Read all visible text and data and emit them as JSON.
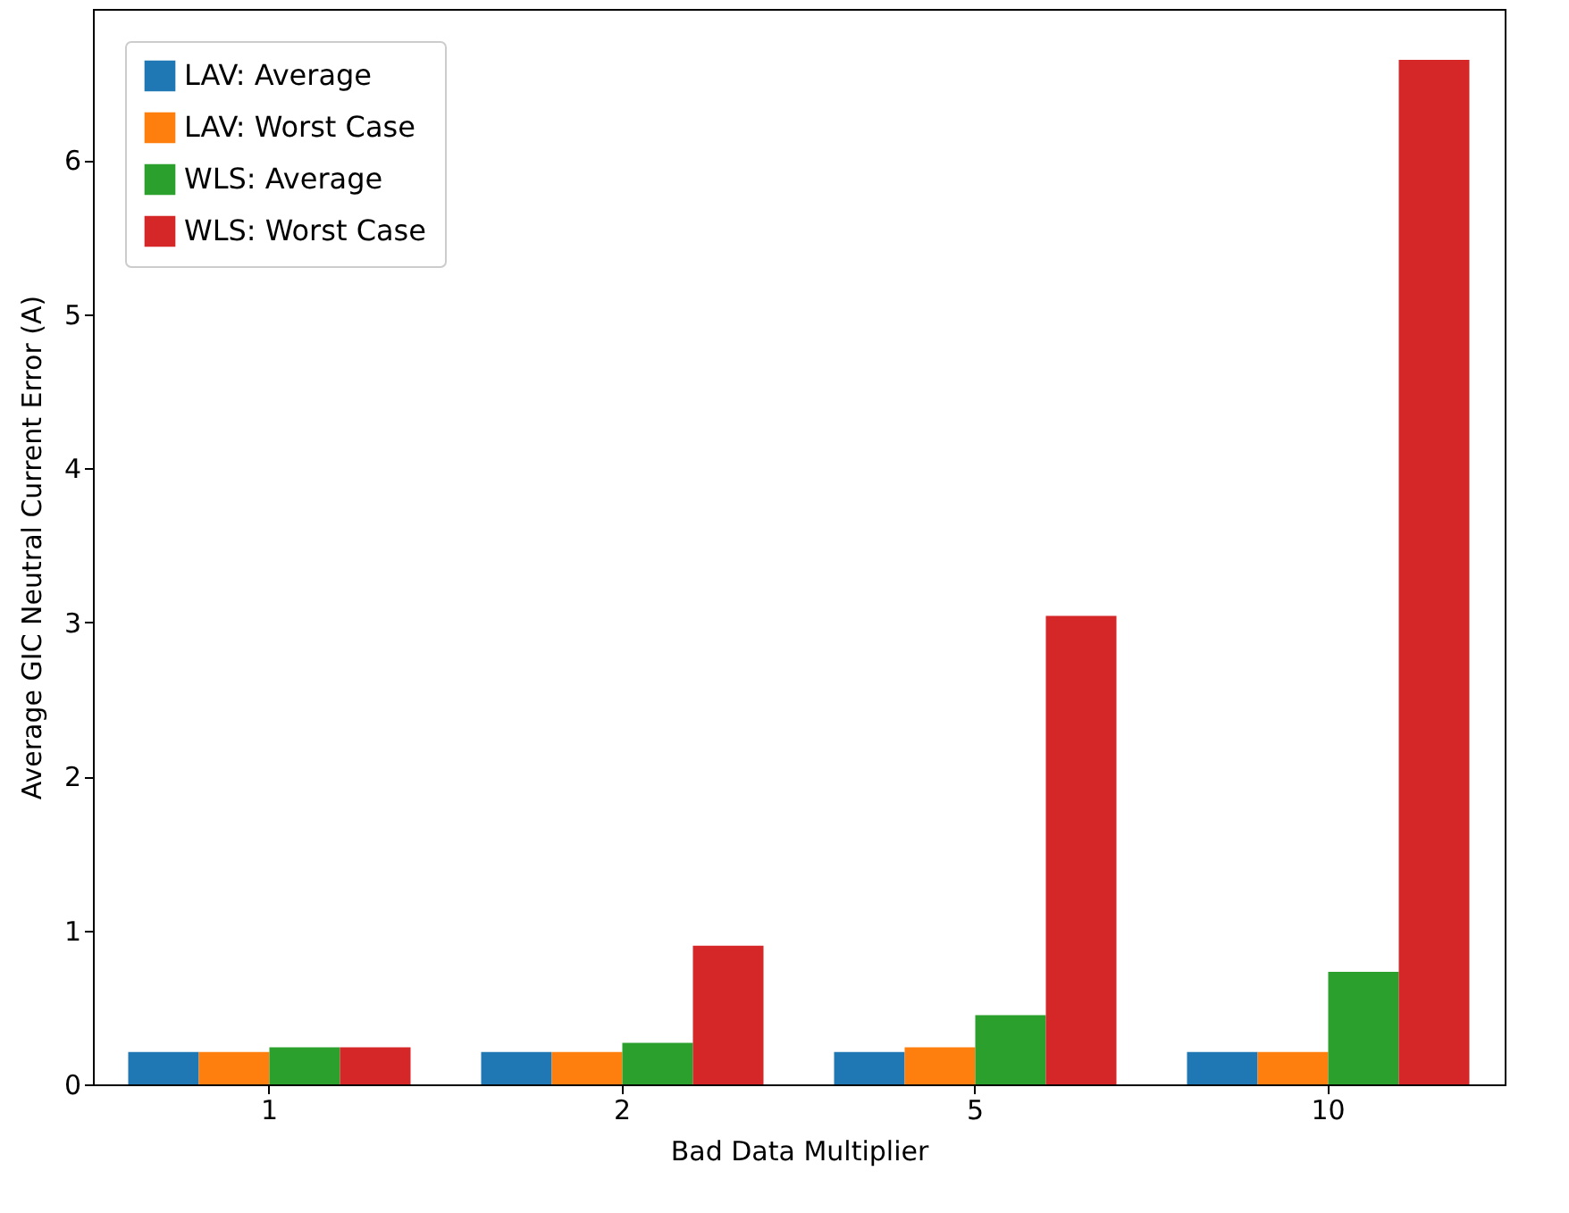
{
  "chart_data": {
    "type": "bar",
    "xlabel": "Bad Data Multiplier",
    "ylabel": "Average GIC Neutral Current Error (A)",
    "categories": [
      "1",
      "2",
      "5",
      "10"
    ],
    "series": [
      {
        "name": "LAV: Average",
        "color": "#1f77b4",
        "values": [
          0.21,
          0.21,
          0.21,
          0.21
        ]
      },
      {
        "name": "LAV: Worst Case",
        "color": "#ff7f0e",
        "values": [
          0.21,
          0.21,
          0.24,
          0.21
        ]
      },
      {
        "name": "WLS: Average",
        "color": "#2ca02c",
        "values": [
          0.24,
          0.27,
          0.45,
          0.73
        ]
      },
      {
        "name": "WLS: Worst Case",
        "color": "#d62728",
        "values": [
          0.24,
          0.9,
          3.04,
          6.65
        ]
      }
    ],
    "ylim": [
      0,
      6.98
    ],
    "yticks": [
      0,
      1,
      2,
      3,
      4,
      5,
      6
    ],
    "legend": "top left",
    "grid": false
  }
}
